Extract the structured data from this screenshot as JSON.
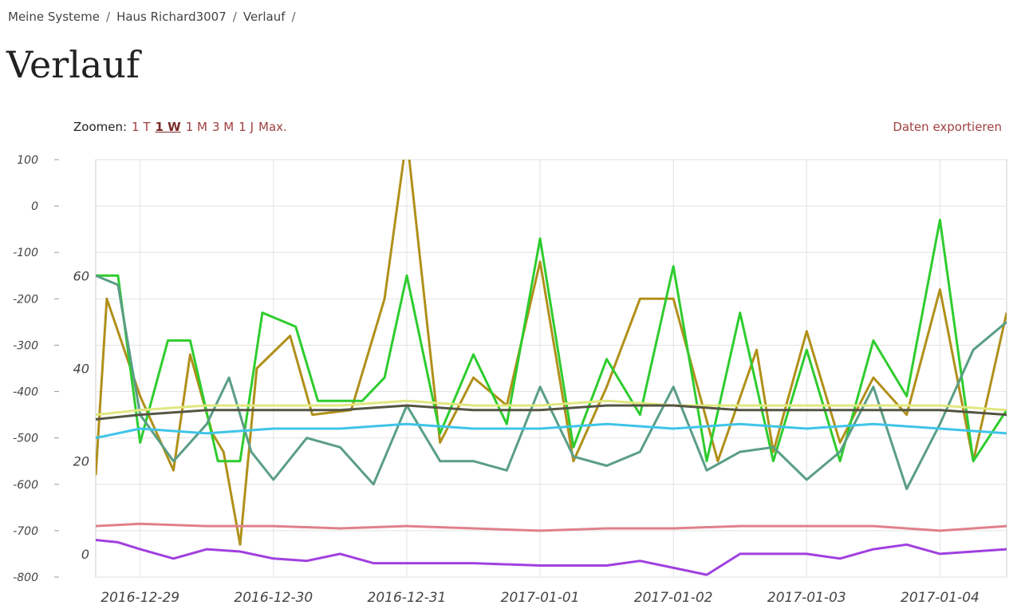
{
  "breadcrumb": {
    "items": [
      "Meine Systeme",
      "Haus Richard3007",
      "Verlauf"
    ],
    "separator": "/"
  },
  "page": {
    "title": "Verlauf"
  },
  "zoom": {
    "label": "Zoomen:",
    "options": [
      "1 T",
      "1 W",
      "1 M",
      "3 M",
      "1 J",
      "Max."
    ],
    "active": "1 W"
  },
  "export": {
    "label": "Daten exportieren"
  },
  "chart_data": {
    "type": "line",
    "title": "",
    "xlabel": "",
    "ylabel": "",
    "grid": true,
    "legend": "none",
    "x_ticks": [
      "2016-12-29",
      "2016-12-30",
      "2016-12-31",
      "2017-01-01",
      "2017-01-02",
      "2017-01-03",
      "2017-01-04"
    ],
    "y_axis_left": {
      "ticks": [
        100,
        0,
        -100,
        -200,
        -300,
        -400,
        -500,
        -600,
        -700,
        -800
      ],
      "range": [
        -800,
        100
      ]
    },
    "y_axis_inner": {
      "ticks": [
        60,
        40,
        20,
        0
      ],
      "range": [
        -5,
        85
      ]
    },
    "x_range": [
      "2016-12-28 16:00",
      "2017-01-04 12:00"
    ],
    "series": [
      {
        "color": "#b0901a",
        "axis": "inner",
        "points": [
          [
            "2016-12-28 16:00",
            17
          ],
          [
            "2016-12-28 18:00",
            55
          ],
          [
            "2016-12-29 00:00",
            34
          ],
          [
            "2016-12-29 06:00",
            18
          ],
          [
            "2016-12-29 09:00",
            43
          ],
          [
            "2016-12-29 13:00",
            26
          ],
          [
            "2016-12-29 15:00",
            22
          ],
          [
            "2016-12-29 18:00",
            2
          ],
          [
            "2016-12-29 21:00",
            40
          ],
          [
            "2016-12-30 03:00",
            47
          ],
          [
            "2016-12-30 07:00",
            30
          ],
          [
            "2016-12-30 14:00",
            31
          ],
          [
            "2016-12-30 20:00",
            55
          ],
          [
            "2016-12-31 00:00",
            90
          ],
          [
            "2016-12-31 06:00",
            24
          ],
          [
            "2016-12-31 12:00",
            38
          ],
          [
            "2016-12-31 18:00",
            32
          ],
          [
            "2017-01-01 00:00",
            63
          ],
          [
            "2017-01-01 06:00",
            20
          ],
          [
            "2017-01-01 12:00",
            36
          ],
          [
            "2017-01-01 18:00",
            55
          ],
          [
            "2017-01-02 00:00",
            55
          ],
          [
            "2017-01-02 08:00",
            20
          ],
          [
            "2017-01-02 15:00",
            44
          ],
          [
            "2017-01-02 18:00",
            22
          ],
          [
            "2017-01-03 00:00",
            48
          ],
          [
            "2017-01-03 06:00",
            24
          ],
          [
            "2017-01-03 12:00",
            38
          ],
          [
            "2017-01-03 18:00",
            30
          ],
          [
            "2017-01-04 00:00",
            57
          ],
          [
            "2017-01-04 06:00",
            20
          ],
          [
            "2017-01-04 12:00",
            52
          ]
        ]
      },
      {
        "color": "#2ecc2e",
        "axis": "inner",
        "points": [
          [
            "2016-12-28 16:00",
            60
          ],
          [
            "2016-12-28 20:00",
            60
          ],
          [
            "2016-12-29 00:00",
            24
          ],
          [
            "2016-12-29 05:00",
            46
          ],
          [
            "2016-12-29 09:00",
            46
          ],
          [
            "2016-12-29 14:00",
            20
          ],
          [
            "2016-12-29 18:00",
            20
          ],
          [
            "2016-12-29 22:00",
            52
          ],
          [
            "2016-12-30 04:00",
            49
          ],
          [
            "2016-12-30 08:00",
            33
          ],
          [
            "2016-12-30 16:00",
            33
          ],
          [
            "2016-12-30 20:00",
            38
          ],
          [
            "2016-12-31 00:00",
            60
          ],
          [
            "2016-12-31 06:00",
            26
          ],
          [
            "2016-12-31 12:00",
            43
          ],
          [
            "2016-12-31 18:00",
            28
          ],
          [
            "2017-01-01 00:00",
            68
          ],
          [
            "2017-01-01 06:00",
            23
          ],
          [
            "2017-01-01 12:00",
            42
          ],
          [
            "2017-01-01 18:00",
            30
          ],
          [
            "2017-01-02 00:00",
            62
          ],
          [
            "2017-01-02 06:00",
            20
          ],
          [
            "2017-01-02 12:00",
            52
          ],
          [
            "2017-01-02 18:00",
            20
          ],
          [
            "2017-01-03 00:00",
            44
          ],
          [
            "2017-01-03 06:00",
            20
          ],
          [
            "2017-01-03 12:00",
            46
          ],
          [
            "2017-01-03 18:00",
            34
          ],
          [
            "2017-01-04 00:00",
            72
          ],
          [
            "2017-01-04 06:00",
            20
          ],
          [
            "2017-01-04 12:00",
            31
          ]
        ]
      },
      {
        "color": "#5a9e86",
        "axis": "inner",
        "points": [
          [
            "2016-12-28 16:00",
            60
          ],
          [
            "2016-12-28 20:00",
            58
          ],
          [
            "2016-12-29 00:00",
            30
          ],
          [
            "2016-12-29 06:00",
            20
          ],
          [
            "2016-12-29 12:00",
            28
          ],
          [
            "2016-12-29 16:00",
            38
          ],
          [
            "2016-12-29 20:00",
            22
          ],
          [
            "2016-12-30 00:00",
            16
          ],
          [
            "2016-12-30 06:00",
            25
          ],
          [
            "2016-12-30 12:00",
            23
          ],
          [
            "2016-12-30 18:00",
            15
          ],
          [
            "2016-12-31 00:00",
            32
          ],
          [
            "2016-12-31 06:00",
            20
          ],
          [
            "2016-12-31 12:00",
            20
          ],
          [
            "2016-12-31 18:00",
            18
          ],
          [
            "2017-01-01 00:00",
            36
          ],
          [
            "2017-01-01 06:00",
            21
          ],
          [
            "2017-01-01 12:00",
            19
          ],
          [
            "2017-01-01 18:00",
            22
          ],
          [
            "2017-01-02 00:00",
            36
          ],
          [
            "2017-01-02 06:00",
            18
          ],
          [
            "2017-01-02 12:00",
            22
          ],
          [
            "2017-01-02 18:00",
            23
          ],
          [
            "2017-01-03 00:00",
            16
          ],
          [
            "2017-01-03 06:00",
            22
          ],
          [
            "2017-01-03 12:00",
            36
          ],
          [
            "2017-01-03 18:00",
            14
          ],
          [
            "2017-01-04 00:00",
            28
          ],
          [
            "2017-01-04 06:00",
            44
          ],
          [
            "2017-01-04 12:00",
            50
          ]
        ]
      },
      {
        "color": "#3fc4e8",
        "axis": "inner",
        "points": [
          [
            "2016-12-28 16:00",
            25
          ],
          [
            "2016-12-29 00:00",
            27
          ],
          [
            "2016-12-29 12:00",
            26
          ],
          [
            "2016-12-30 00:00",
            27
          ],
          [
            "2016-12-30 12:00",
            27
          ],
          [
            "2016-12-31 00:00",
            28
          ],
          [
            "2016-12-31 12:00",
            27
          ],
          [
            "2017-01-01 00:00",
            27
          ],
          [
            "2017-01-01 12:00",
            28
          ],
          [
            "2017-01-02 00:00",
            27
          ],
          [
            "2017-01-02 12:00",
            28
          ],
          [
            "2017-01-03 00:00",
            27
          ],
          [
            "2017-01-03 12:00",
            28
          ],
          [
            "2017-01-04 00:00",
            27
          ],
          [
            "2017-01-04 12:00",
            26
          ]
        ]
      },
      {
        "color": "#e0e880",
        "axis": "inner",
        "points": [
          [
            "2016-12-28 16:00",
            30
          ],
          [
            "2016-12-29 00:00",
            31
          ],
          [
            "2016-12-29 12:00",
            32
          ],
          [
            "2016-12-30 00:00",
            32
          ],
          [
            "2016-12-30 12:00",
            32
          ],
          [
            "2016-12-31 00:00",
            33
          ],
          [
            "2016-12-31 12:00",
            32
          ],
          [
            "2017-01-01 00:00",
            32
          ],
          [
            "2017-01-01 12:00",
            33
          ],
          [
            "2017-01-02 00:00",
            32
          ],
          [
            "2017-01-02 12:00",
            32
          ],
          [
            "2017-01-03 00:00",
            32
          ],
          [
            "2017-01-03 12:00",
            32
          ],
          [
            "2017-01-04 00:00",
            32
          ],
          [
            "2017-01-04 12:00",
            31
          ]
        ]
      },
      {
        "color": "#555544",
        "axis": "inner",
        "points": [
          [
            "2016-12-28 16:00",
            29
          ],
          [
            "2016-12-29 00:00",
            30
          ],
          [
            "2016-12-29 12:00",
            31
          ],
          [
            "2016-12-30 00:00",
            31
          ],
          [
            "2016-12-30 12:00",
            31
          ],
          [
            "2016-12-31 00:00",
            32
          ],
          [
            "2016-12-31 12:00",
            31
          ],
          [
            "2017-01-01 00:00",
            31
          ],
          [
            "2017-01-01 12:00",
            32
          ],
          [
            "2017-01-02 00:00",
            32
          ],
          [
            "2017-01-02 12:00",
            31
          ],
          [
            "2017-01-03 00:00",
            31
          ],
          [
            "2017-01-03 12:00",
            31
          ],
          [
            "2017-01-04 00:00",
            31
          ],
          [
            "2017-01-04 12:00",
            30
          ]
        ]
      },
      {
        "color": "#e0808a",
        "axis": "inner",
        "points": [
          [
            "2016-12-28 16:00",
            6
          ],
          [
            "2016-12-29 00:00",
            6.5
          ],
          [
            "2016-12-29 12:00",
            6
          ],
          [
            "2016-12-30 00:00",
            6
          ],
          [
            "2016-12-30 12:00",
            5.5
          ],
          [
            "2016-12-31 00:00",
            6
          ],
          [
            "2016-12-31 12:00",
            5.5
          ],
          [
            "2017-01-01 00:00",
            5
          ],
          [
            "2017-01-01 12:00",
            5.5
          ],
          [
            "2017-01-02 00:00",
            5.5
          ],
          [
            "2017-01-02 12:00",
            6
          ],
          [
            "2017-01-03 00:00",
            6
          ],
          [
            "2017-01-03 12:00",
            6
          ],
          [
            "2017-01-04 00:00",
            5
          ],
          [
            "2017-01-04 12:00",
            6
          ]
        ]
      },
      {
        "color": "#a040e0",
        "axis": "inner",
        "points": [
          [
            "2016-12-28 16:00",
            3
          ],
          [
            "2016-12-28 20:00",
            2.5
          ],
          [
            "2016-12-29 00:00",
            1
          ],
          [
            "2016-12-29 06:00",
            -1
          ],
          [
            "2016-12-29 12:00",
            1
          ],
          [
            "2016-12-29 18:00",
            0.5
          ],
          [
            "2016-12-30 00:00",
            -1
          ],
          [
            "2016-12-30 06:00",
            -1.5
          ],
          [
            "2016-12-30 12:00",
            0
          ],
          [
            "2016-12-30 18:00",
            -2
          ],
          [
            "2016-12-31 00:00",
            -2
          ],
          [
            "2016-12-31 12:00",
            -2
          ],
          [
            "2017-01-01 00:00",
            -2.5
          ],
          [
            "2017-01-01 12:00",
            -2.5
          ],
          [
            "2017-01-01 18:00",
            -1.5
          ],
          [
            "2017-01-02 00:00",
            -3
          ],
          [
            "2017-01-02 06:00",
            -4.5
          ],
          [
            "2017-01-02 12:00",
            0
          ],
          [
            "2017-01-02 18:00",
            0
          ],
          [
            "2017-01-03 00:00",
            0
          ],
          [
            "2017-01-03 06:00",
            -1
          ],
          [
            "2017-01-03 12:00",
            1
          ],
          [
            "2017-01-03 18:00",
            2
          ],
          [
            "2017-01-04 00:00",
            0
          ],
          [
            "2017-01-04 06:00",
            0.5
          ],
          [
            "2017-01-04 12:00",
            1
          ]
        ]
      }
    ]
  }
}
